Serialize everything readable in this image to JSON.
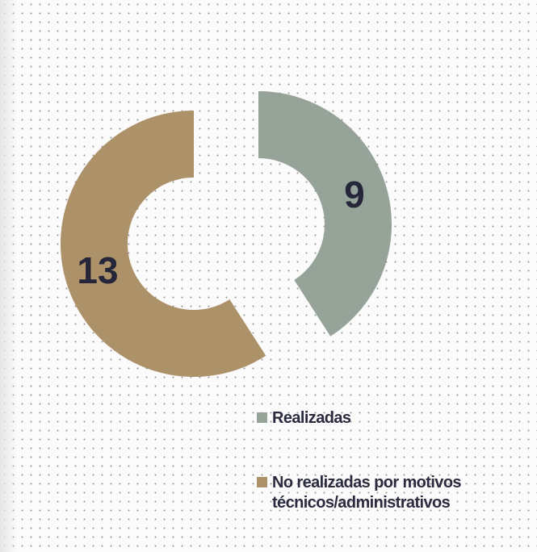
{
  "chart_data": {
    "type": "donut",
    "categories": [
      "Realizadas",
      "No realizadas por motivos técnicos/administrativos"
    ],
    "values": [
      9,
      13
    ],
    "colors": [
      "#95a398",
      "#ad9169"
    ],
    "legend": "bottom-right"
  }
}
